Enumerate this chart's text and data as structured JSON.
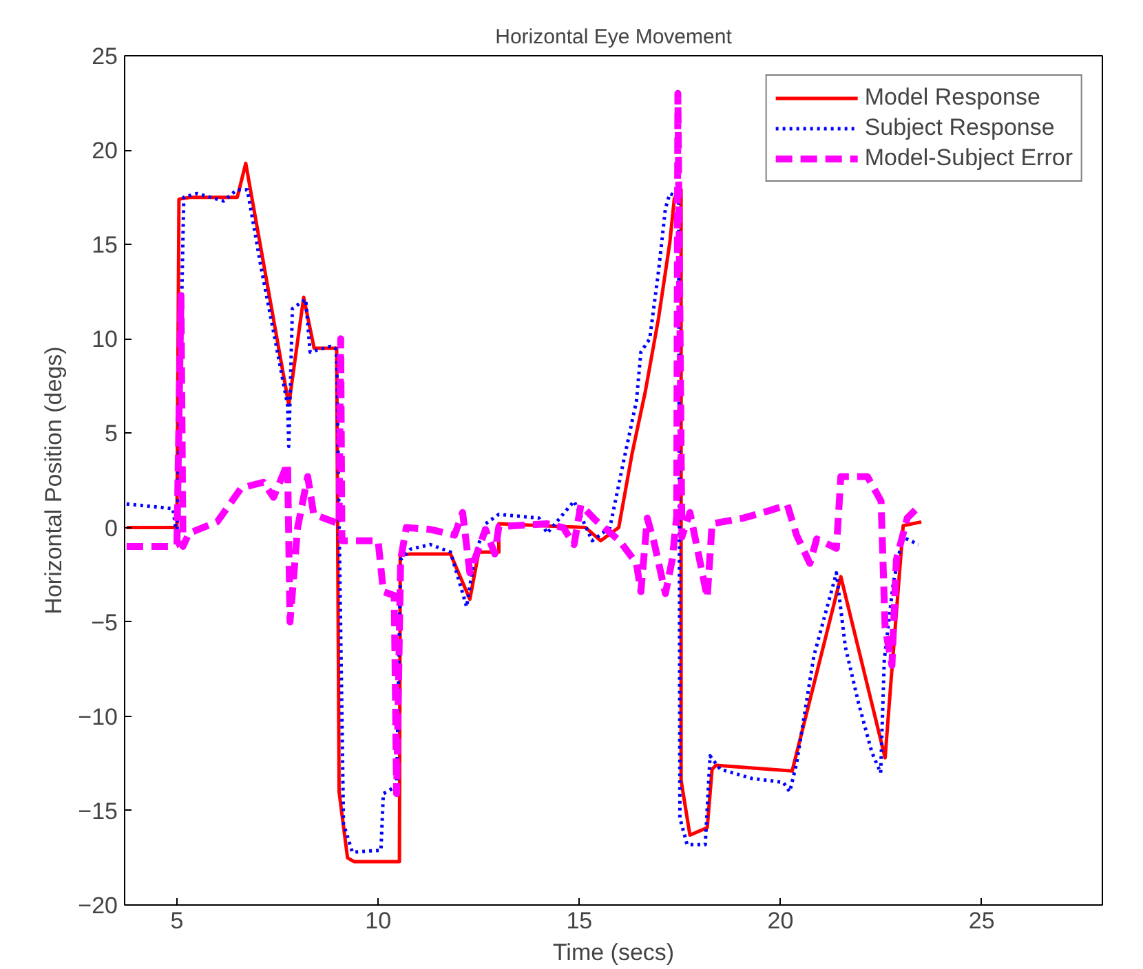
{
  "chart_data": {
    "type": "line",
    "title": "Horizontal Eye Movement",
    "xlabel": "Time (secs)",
    "ylabel": "Horizontal Position (degs)",
    "xlim": [
      3.7,
      28
    ],
    "ylim": [
      -20,
      25
    ],
    "xticks": [
      5,
      10,
      15,
      20,
      25
    ],
    "yticks": [
      -20,
      -15,
      -10,
      -5,
      0,
      5,
      10,
      15,
      20,
      25
    ],
    "grid": false,
    "legend": "top right",
    "marker": "none",
    "series": [
      {
        "name": "Model Response",
        "color": "#ff0000",
        "line_style": "solid",
        "x": [
          3.75,
          5.0,
          5.05,
          5.33,
          6.5,
          6.71,
          7.78,
          8.15,
          8.41,
          8.97,
          9.03,
          9.24,
          9.4,
          10.53,
          10.55,
          10.8,
          11.8,
          12.28,
          12.5,
          13.0,
          13.0,
          15.16,
          15.53,
          15.98,
          16.31,
          16.64,
          16.97,
          17.25,
          17.36,
          17.47,
          17.53,
          17.53,
          17.75,
          18.18,
          18.3,
          18.4,
          20.29,
          21.5,
          22.6,
          22.77,
          23.05,
          23.5
        ],
        "values": [
          0,
          0,
          17.4,
          17.5,
          17.5,
          19.3,
          6.5,
          12.2,
          9.5,
          9.5,
          -14.0,
          -17.5,
          -17.7,
          -17.7,
          -1.45,
          -1.4,
          -1.4,
          -3.8,
          -1.3,
          -1.3,
          0.2,
          0,
          -0.7,
          0,
          3.9,
          7.2,
          11.1,
          15.1,
          17.4,
          17.9,
          17.9,
          -13.4,
          -16.3,
          -15.9,
          -12.8,
          -12.6,
          -12.9,
          -2.6,
          -12.2,
          -7.5,
          0.1,
          0.3
        ]
      },
      {
        "name": "Subject Response",
        "color": "#0000ff",
        "line_style": "dotted",
        "x": [
          3.75,
          4.9,
          5.0,
          5.17,
          5.5,
          6.16,
          6.49,
          6.75,
          7.09,
          7.48,
          7.75,
          7.78,
          7.87,
          8.2,
          8.31,
          8.81,
          8.94,
          8.97,
          9.14,
          9.36,
          10.07,
          10.13,
          10.46,
          10.56,
          10.8,
          11.3,
          11.8,
          12.2,
          12.4,
          12.67,
          13.0,
          14.0,
          14.2,
          14.87,
          15.32,
          15.76,
          16.09,
          16.42,
          16.53,
          16.75,
          16.97,
          17.14,
          17.25,
          17.47,
          17.5,
          17.68,
          18.13,
          18.25,
          18.5,
          19.3,
          20.07,
          20.23,
          20.4,
          20.83,
          21.39,
          21.61,
          21.94,
          22.27,
          22.49,
          22.58,
          22.8,
          23.03,
          23.43
        ],
        "values": [
          1.25,
          1.0,
          -0.5,
          17.5,
          17.7,
          17.3,
          17.9,
          17.9,
          13.8,
          9.5,
          6.5,
          4.3,
          11.6,
          12.1,
          9.3,
          9.6,
          9.5,
          9.0,
          -15.7,
          -17.2,
          -17.1,
          -14.1,
          -13.7,
          -1.7,
          -1.15,
          -0.9,
          -1.3,
          -4.2,
          -1.5,
          0.2,
          0.7,
          0.5,
          -0.3,
          1.4,
          -0.7,
          0,
          3.4,
          6.7,
          9.3,
          10.0,
          13.6,
          16.9,
          17.7,
          17.5,
          -15.4,
          -16.8,
          -16.8,
          -12.1,
          -12.8,
          -13.3,
          -13.5,
          -14.0,
          -12.5,
          -6.8,
          -2.4,
          -6.3,
          -9.3,
          -11.9,
          -13.0,
          -7.0,
          -3.0,
          -0.5,
          -0.9
        ]
      },
      {
        "name": "Model-Subject Error",
        "color": "#ff00ff",
        "line_style": "dashed",
        "x": [
          3.75,
          4.9,
          5.0,
          5.1,
          5.15,
          5.3,
          6.0,
          6.6,
          7.15,
          7.4,
          7.75,
          7.81,
          8.0,
          8.25,
          8.4,
          9.03,
          9.07,
          9.1,
          10.0,
          10.13,
          10.4,
          10.46,
          10.56,
          10.7,
          11.3,
          11.9,
          12.1,
          12.28,
          12.67,
          12.9,
          13.0,
          14.2,
          14.6,
          14.87,
          15.04,
          15.4,
          16.0,
          16.42,
          16.53,
          16.69,
          16.86,
          17.14,
          17.31,
          17.42,
          17.45,
          17.55,
          17.75,
          18.18,
          18.3,
          19.07,
          19.73,
          20.17,
          20.4,
          20.73,
          20.9,
          21.39,
          21.5,
          22.16,
          22.5,
          22.6,
          22.77,
          22.88,
          23.15,
          23.43
        ],
        "values": [
          -1.0,
          -1.0,
          -0.9,
          12.3,
          -1.0,
          -0.3,
          0.3,
          2.1,
          2.4,
          1.6,
          3.4,
          -5.0,
          0.0,
          2.7,
          0.7,
          0.2,
          10.0,
          -0.7,
          -0.7,
          -3.4,
          -3.6,
          -14.1,
          -1.7,
          0,
          -0.1,
          -0.4,
          0.8,
          -2.4,
          -0.1,
          -1.4,
          0.05,
          0.2,
          0,
          -0.9,
          1.2,
          0.4,
          -0.7,
          -1.9,
          -3.4,
          0.5,
          -0.8,
          -3.5,
          -1.7,
          0.6,
          23.0,
          -0.5,
          0.8,
          -3.7,
          0.2,
          0.5,
          0.9,
          1.2,
          -0.4,
          -1.9,
          -0.6,
          -1.1,
          2.7,
          2.7,
          1.4,
          -5.3,
          -7.3,
          -1.7,
          0.5,
          1.1
        ]
      }
    ]
  }
}
